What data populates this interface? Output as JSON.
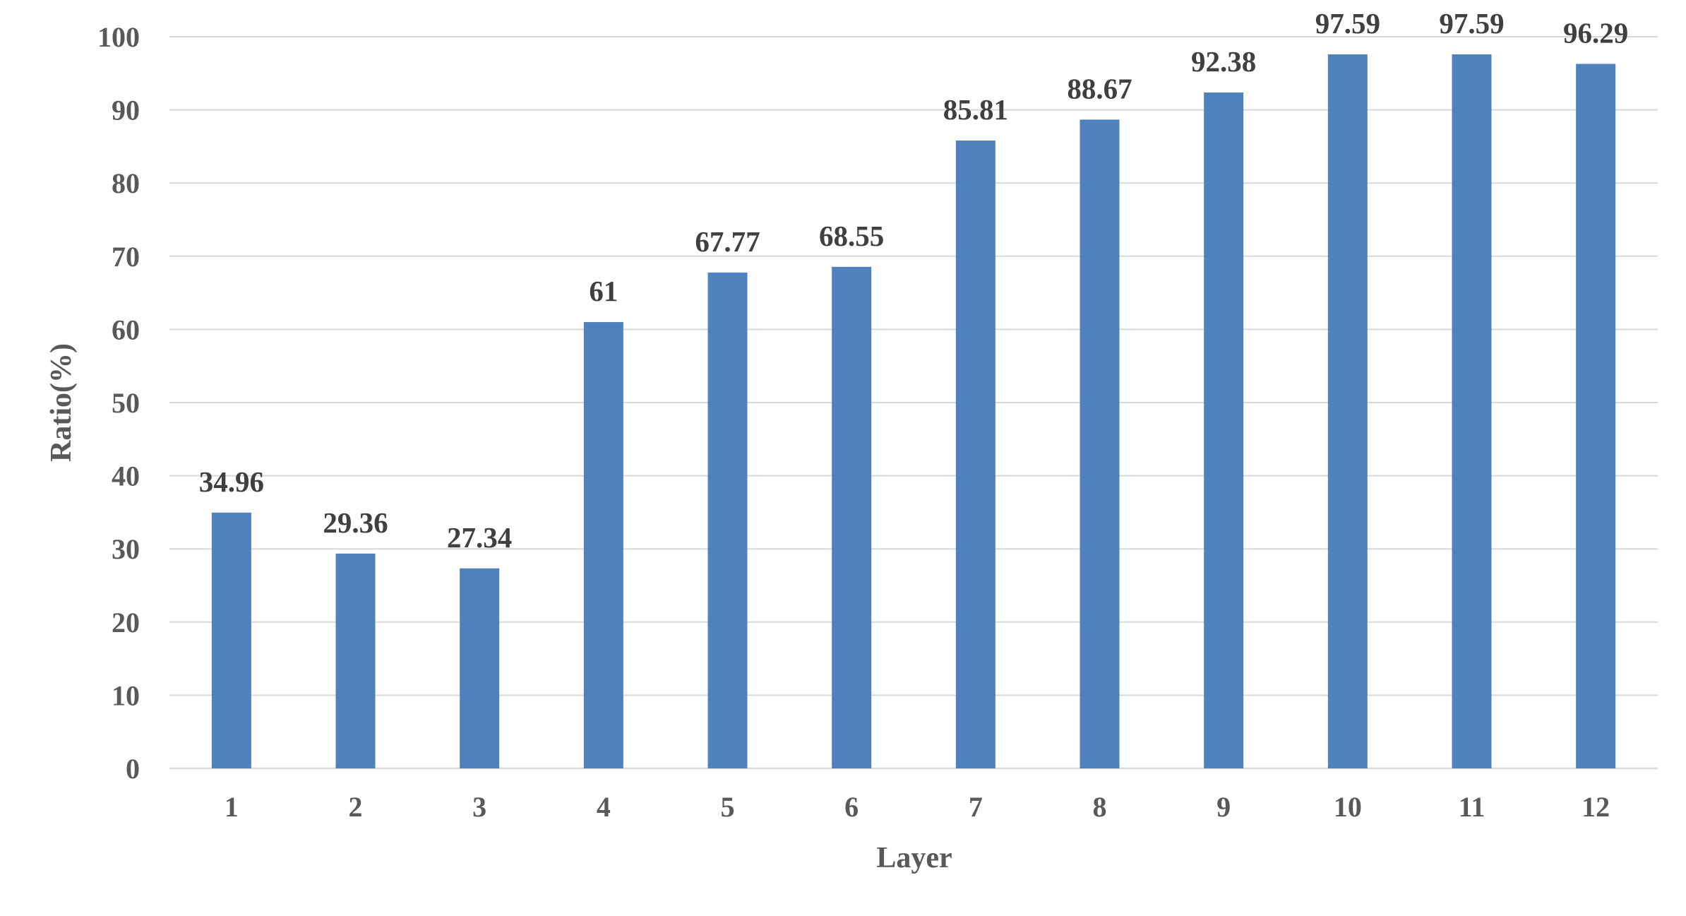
{
  "chart_data": {
    "type": "bar",
    "categories": [
      "1",
      "2",
      "3",
      "4",
      "5",
      "6",
      "7",
      "8",
      "9",
      "10",
      "11",
      "12"
    ],
    "values": [
      34.96,
      29.36,
      27.34,
      61,
      67.77,
      68.55,
      85.81,
      88.67,
      92.38,
      97.59,
      97.59,
      96.29
    ],
    "data_labels": [
      "34.96",
      "29.36",
      "27.34",
      "61",
      "67.77",
      "68.55",
      "85.81",
      "88.67",
      "92.38",
      "97.59",
      "97.59",
      "96.29"
    ],
    "y_ticks": [
      "0",
      "10",
      "20",
      "30",
      "40",
      "50",
      "60",
      "70",
      "80",
      "90",
      "100"
    ],
    "xlabel": "Layer",
    "ylabel": "Ratio(%)",
    "ylim": [
      0,
      100
    ],
    "grid": true,
    "legend": "none",
    "bar_color": "#4f81bd"
  }
}
